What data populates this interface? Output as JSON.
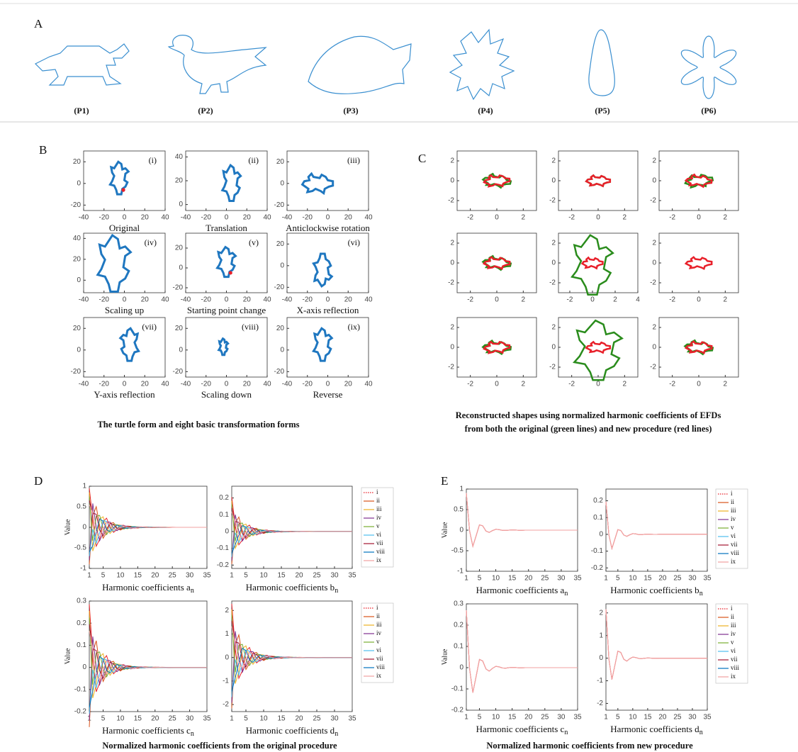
{
  "panel_a": {
    "label": "A",
    "shapes": [
      "(P1)",
      "(P2)",
      "(P3)",
      "(P4)",
      "(P5)",
      "(P6)"
    ]
  },
  "panel_b": {
    "label": "B",
    "caption": "The turtle form and  eight basic transformation forms",
    "plots": [
      {
        "tag": "(i)",
        "title": "Original",
        "xlim": [
          -40,
          40
        ],
        "xticks": [
          -40,
          -20,
          0,
          20,
          40
        ],
        "ylim": [
          -25,
          30
        ],
        "yticks": [
          -20,
          0,
          20
        ]
      },
      {
        "tag": "(ii)",
        "title": "Translation",
        "xlim": [
          -40,
          40
        ],
        "xticks": [
          -40,
          -20,
          0,
          20,
          40
        ],
        "ylim": [
          -5,
          45
        ],
        "yticks": [
          0,
          20,
          40
        ]
      },
      {
        "tag": "(iii)",
        "title": "Anticlockwise rotation",
        "xlim": [
          -40,
          40
        ],
        "xticks": [
          -40,
          -20,
          0,
          20,
          40
        ],
        "ylim": [
          -25,
          30
        ],
        "yticks": [
          -20,
          0,
          20
        ]
      },
      {
        "tag": "(iv)",
        "title": "Scaling up",
        "xlim": [
          -40,
          40
        ],
        "xticks": [
          -40,
          -20,
          0,
          20,
          40
        ],
        "ylim": [
          -12,
          45
        ],
        "yticks": [
          0,
          20,
          40
        ]
      },
      {
        "tag": "(v)",
        "title": "Starting point change",
        "xlim": [
          -40,
          40
        ],
        "xticks": [
          -40,
          -20,
          0,
          20,
          40
        ],
        "ylim": [
          -25,
          35
        ],
        "yticks": [
          -20,
          0,
          20
        ]
      },
      {
        "tag": "(vi)",
        "title": "X-axis reflection",
        "xlim": [
          -40,
          40
        ],
        "xticks": [
          -40,
          -20,
          0,
          20,
          40
        ],
        "ylim": [
          -25,
          30
        ],
        "yticks": [
          -20,
          0,
          20
        ]
      },
      {
        "tag": "(vii)",
        "title": "Y-axis reflection",
        "xlim": [
          -40,
          40
        ],
        "xticks": [
          -40,
          -20,
          0,
          20,
          40
        ],
        "ylim": [
          -25,
          30
        ],
        "yticks": [
          -20,
          0,
          20
        ]
      },
      {
        "tag": "(viii)",
        "title": "Scaling down",
        "xlim": [
          -40,
          40
        ],
        "xticks": [
          -40,
          -20,
          0,
          20,
          40
        ],
        "ylim": [
          -25,
          30
        ],
        "yticks": [
          -20,
          0,
          20
        ]
      },
      {
        "tag": "(ix)",
        "title": "Reverse",
        "xlim": [
          -40,
          40
        ],
        "xticks": [
          -40,
          -20,
          0,
          20,
          40
        ],
        "ylim": [
          -25,
          30
        ],
        "yticks": [
          -20,
          0,
          20
        ]
      }
    ]
  },
  "panel_c": {
    "label": "C",
    "caption": [
      "Reconstructed shapes using normalized harmonic coefficients of EFDs",
      "from both the original (green lines) and new procedure (red lines)"
    ],
    "plots": [
      {
        "xlim": [
          -3,
          3
        ],
        "xticks": [
          -2,
          0,
          2
        ],
        "ylim": [
          -3,
          3
        ],
        "yticks": [
          -2,
          0,
          2
        ]
      },
      {
        "xlim": [
          -3,
          3
        ],
        "xticks": [
          -2,
          0,
          2
        ],
        "ylim": [
          -3,
          3
        ],
        "yticks": [
          -2,
          0,
          2
        ]
      },
      {
        "xlim": [
          -3,
          3
        ],
        "xticks": [
          -2,
          0,
          2
        ],
        "ylim": [
          -3,
          3
        ],
        "yticks": [
          -2,
          0,
          2
        ]
      },
      {
        "xlim": [
          -3,
          3
        ],
        "xticks": [
          -2,
          0,
          2
        ],
        "ylim": [
          -3,
          3
        ],
        "yticks": [
          -2,
          0,
          2
        ]
      },
      {
        "xlim": [
          -3,
          4
        ],
        "xticks": [
          -2,
          0,
          2,
          4
        ],
        "ylim": [
          -3,
          3
        ],
        "yticks": [
          -2,
          0,
          2
        ]
      },
      {
        "xlim": [
          -3,
          3
        ],
        "xticks": [
          -2,
          0,
          2
        ],
        "ylim": [
          -3,
          3
        ],
        "yticks": [
          -2,
          0,
          2
        ]
      },
      {
        "xlim": [
          -3,
          3
        ],
        "xticks": [
          -2,
          0,
          2
        ],
        "ylim": [
          -3,
          3
        ],
        "yticks": [
          -2,
          0,
          2
        ]
      },
      {
        "xlim": [
          -3,
          3
        ],
        "xticks": [
          -2,
          0,
          2
        ],
        "ylim": [
          -3,
          3
        ],
        "yticks": [
          -2,
          0,
          2
        ]
      },
      {
        "xlim": [
          -3,
          3
        ],
        "xticks": [
          -2,
          0,
          2
        ],
        "ylim": [
          -3,
          3
        ],
        "yticks": [
          -2,
          0,
          2
        ]
      }
    ]
  },
  "panel_d": {
    "label": "D",
    "caption": "Normalized harmonic coefficients from the original procedure",
    "legend": [
      {
        "name": "i",
        "color": "#e8202a"
      },
      {
        "name": "ii",
        "color": "#d95319"
      },
      {
        "name": "iii",
        "color": "#edb120"
      },
      {
        "name": "iv",
        "color": "#7e2f8e"
      },
      {
        "name": "v",
        "color": "#77ac30"
      },
      {
        "name": "vi",
        "color": "#4dbeee"
      },
      {
        "name": "vii",
        "color": "#a2142f"
      },
      {
        "name": "viii",
        "color": "#0072bd"
      },
      {
        "name": "ix",
        "color": "#f0a0a0"
      }
    ],
    "plots": [
      {
        "ylabel": "Value",
        "xlabel": "Harmonic coefficients a",
        "xlabel_sub": "n",
        "xlim": [
          1,
          35
        ],
        "xticks": [
          1,
          5,
          10,
          15,
          20,
          25,
          30,
          35
        ],
        "ylim": [
          -1,
          1
        ],
        "yticks": [
          -1,
          -0.5,
          0,
          0.5,
          1
        ]
      },
      {
        "xlabel": "Harmonic coefficients b",
        "xlabel_sub": "n",
        "xlim": [
          1,
          35
        ],
        "xticks": [
          1,
          5,
          10,
          15,
          20,
          25,
          30,
          35
        ],
        "ylim": [
          -0.22,
          0.27
        ],
        "yticks": [
          -0.2,
          -0.1,
          0,
          0.1,
          0.2
        ]
      },
      {
        "ylabel": "Value",
        "xlabel": "Harmonic coefficients c",
        "xlabel_sub": "n",
        "xlim": [
          1,
          35
        ],
        "xticks": [
          1,
          5,
          10,
          15,
          20,
          25,
          30,
          35
        ],
        "ylim": [
          -0.2,
          0.3
        ],
        "yticks": [
          -0.2,
          -0.1,
          0,
          0.1,
          0.2,
          0.3
        ]
      },
      {
        "xlabel": "Harmonic coefficients d",
        "xlabel_sub": "n",
        "xlim": [
          1,
          35
        ],
        "xticks": [
          1,
          5,
          10,
          15,
          20,
          25,
          30,
          35
        ],
        "ylim": [
          -2.3,
          2.4
        ],
        "yticks": [
          -2,
          -1,
          0,
          1,
          2
        ]
      }
    ]
  },
  "panel_e": {
    "label": "E",
    "caption": "Normalized harmonic coefficients from new procedure",
    "legend": [
      {
        "name": "i",
        "color": "#e8202a"
      },
      {
        "name": "ii",
        "color": "#d95319"
      },
      {
        "name": "iii",
        "color": "#edb120"
      },
      {
        "name": "iv",
        "color": "#7e2f8e"
      },
      {
        "name": "v",
        "color": "#77ac30"
      },
      {
        "name": "vi",
        "color": "#4dbeee"
      },
      {
        "name": "vii",
        "color": "#a2142f"
      },
      {
        "name": "viii",
        "color": "#0072bd"
      },
      {
        "name": "ix",
        "color": "#f0a0a0"
      }
    ],
    "plots": [
      {
        "ylabel": "Value",
        "xlabel": "Harmonic coefficients a",
        "xlabel_sub": "n",
        "xlim": [
          1,
          35
        ],
        "xticks": [
          1,
          5,
          10,
          15,
          20,
          25,
          30,
          35
        ],
        "ylim": [
          -1,
          1
        ],
        "yticks": [
          -1,
          -0.5,
          0,
          0.5,
          1
        ]
      },
      {
        "xlabel": "Harmonic coefficients b",
        "xlabel_sub": "n",
        "xlim": [
          1,
          35
        ],
        "xticks": [
          1,
          5,
          10,
          15,
          20,
          25,
          30,
          35
        ],
        "ylim": [
          -0.22,
          0.27
        ],
        "yticks": [
          -0.2,
          -0.1,
          0,
          0.1,
          0.2
        ]
      },
      {
        "ylabel": "Value",
        "xlabel": "Harmonic coefficients c",
        "xlabel_sub": "n",
        "xlim": [
          1,
          35
        ],
        "xticks": [
          1,
          5,
          10,
          15,
          20,
          25,
          30,
          35
        ],
        "ylim": [
          -0.2,
          0.3
        ],
        "yticks": [
          -0.2,
          -0.1,
          0,
          0.1,
          0.2,
          0.3
        ]
      },
      {
        "xlabel": "Harmonic coefficients d",
        "xlabel_sub": "n",
        "xlim": [
          1,
          35
        ],
        "xticks": [
          1,
          5,
          10,
          15,
          20,
          25,
          30,
          35
        ],
        "ylim": [
          -2.3,
          2.4
        ],
        "yticks": [
          -2,
          -1,
          0,
          1,
          2
        ]
      }
    ]
  }
}
